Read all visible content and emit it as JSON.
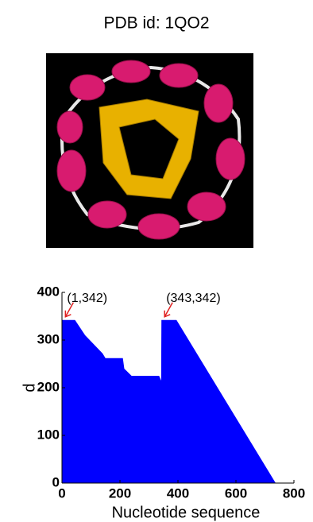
{
  "chart_data": {
    "type": "area",
    "title": "PDB id: 1QO2",
    "x": [
      1,
      45,
      80,
      140,
      150,
      210,
      215,
      240,
      335,
      342,
      343,
      395,
      737
    ],
    "values": [
      342,
      342,
      310,
      272,
      262,
      262,
      240,
      225,
      225,
      215,
      342,
      342,
      0
    ],
    "color": "#0000ff",
    "xlim": [
      0,
      800
    ],
    "xticks": [
      0,
      200,
      400,
      600,
      800
    ],
    "ylim": [
      0,
      400
    ],
    "yticks": [
      0,
      100,
      200,
      300,
      400
    ],
    "xlabel": "Nucleotide sequence",
    "ylabel": "d",
    "annotations": [
      {
        "label": "(1,342)",
        "x": 1,
        "y": 342
      },
      {
        "label": "(343,342)",
        "x": 343,
        "y": 342
      }
    ]
  }
}
